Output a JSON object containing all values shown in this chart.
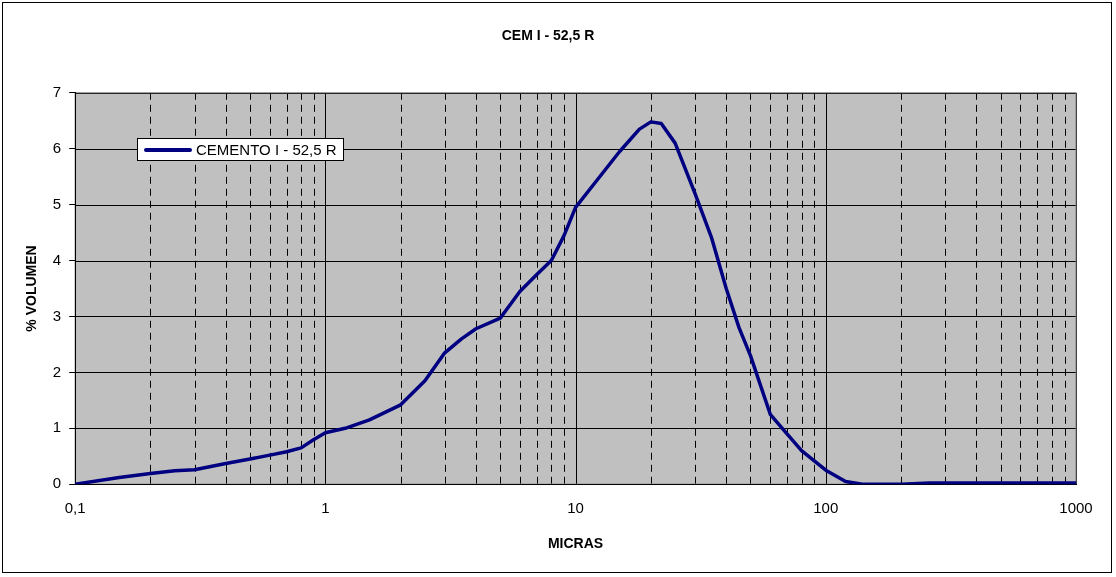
{
  "chart_data": {
    "type": "line",
    "title": "CEM I - 52,5 R",
    "xlabel": "MICRAS",
    "ylabel": "% VOLUMEN",
    "log": "x",
    "xlim": [
      0.1,
      1000
    ],
    "xticks": [
      {
        "value": 0.1,
        "label": "0,1"
      },
      {
        "value": 0.2,
        "label": null
      },
      {
        "value": 0.3,
        "label": null
      },
      {
        "value": 0.4,
        "label": null
      },
      {
        "value": 0.5,
        "label": null
      },
      {
        "value": 0.6,
        "label": null
      },
      {
        "value": 0.7,
        "label": null
      },
      {
        "value": 0.8,
        "label": null
      },
      {
        "value": 0.9,
        "label": null
      },
      1,
      {
        "value": 2,
        "label": null
      },
      {
        "value": 3,
        "label": null
      },
      {
        "value": 4,
        "label": null
      },
      {
        "value": 5,
        "label": null
      },
      {
        "value": 6,
        "label": null
      },
      {
        "value": 7,
        "label": null
      },
      {
        "value": 8,
        "label": null
      },
      {
        "value": 9,
        "label": null
      },
      10,
      {
        "value": 20,
        "label": null
      },
      {
        "value": 30,
        "label": null
      },
      {
        "value": 40,
        "label": null
      },
      {
        "value": 50,
        "label": null
      },
      {
        "value": 60,
        "label": null
      },
      {
        "value": 70,
        "label": null
      },
      {
        "value": 80,
        "label": null
      },
      {
        "value": 90,
        "label": null
      },
      100,
      {
        "value": 200,
        "label": null
      },
      {
        "value": 300,
        "label": null
      },
      {
        "value": 400,
        "label": null
      },
      {
        "value": 500,
        "label": null
      },
      {
        "value": 600,
        "label": null
      },
      {
        "value": 700,
        "label": null
      },
      {
        "value": 800,
        "label": null
      },
      {
        "value": 900,
        "label": null
      },
      1000
    ],
    "ylim": [
      0,
      7
    ],
    "yticks": [
      0,
      1,
      2,
      3,
      4,
      5,
      6,
      7
    ],
    "grid": true,
    "legend": "top left",
    "marker": "none",
    "line_style": "solid",
    "x": [
      0.1,
      0.15,
      0.2,
      0.25,
      0.3,
      0.4,
      0.5,
      0.6,
      0.7,
      0.8,
      0.9,
      1,
      1.2,
      1.5,
      2,
      2.5,
      3,
      3.5,
      4,
      5,
      6,
      7,
      8,
      9,
      10,
      12,
      15,
      18,
      20,
      22,
      25,
      30,
      35,
      40,
      45,
      50,
      60,
      70,
      80,
      100,
      120,
      140,
      200,
      260,
      1000
    ],
    "series": [
      {
        "name": "CEMENTO I - 52,5 R",
        "color": "#000080",
        "values": [
          0,
          0.12,
          0.19,
          0.24,
          0.26,
          0.37,
          0.45,
          0.52,
          0.58,
          0.65,
          0.8,
          0.92,
          1.0,
          1.15,
          1.42,
          1.85,
          2.35,
          2.6,
          2.78,
          2.97,
          3.45,
          3.75,
          4.0,
          4.45,
          4.95,
          5.4,
          5.95,
          6.35,
          6.48,
          6.45,
          6.1,
          5.2,
          4.4,
          3.5,
          2.8,
          2.3,
          1.25,
          0.9,
          0.6,
          0.25,
          0.05,
          0,
          0,
          0.02,
          0.02
        ]
      }
    ]
  }
}
